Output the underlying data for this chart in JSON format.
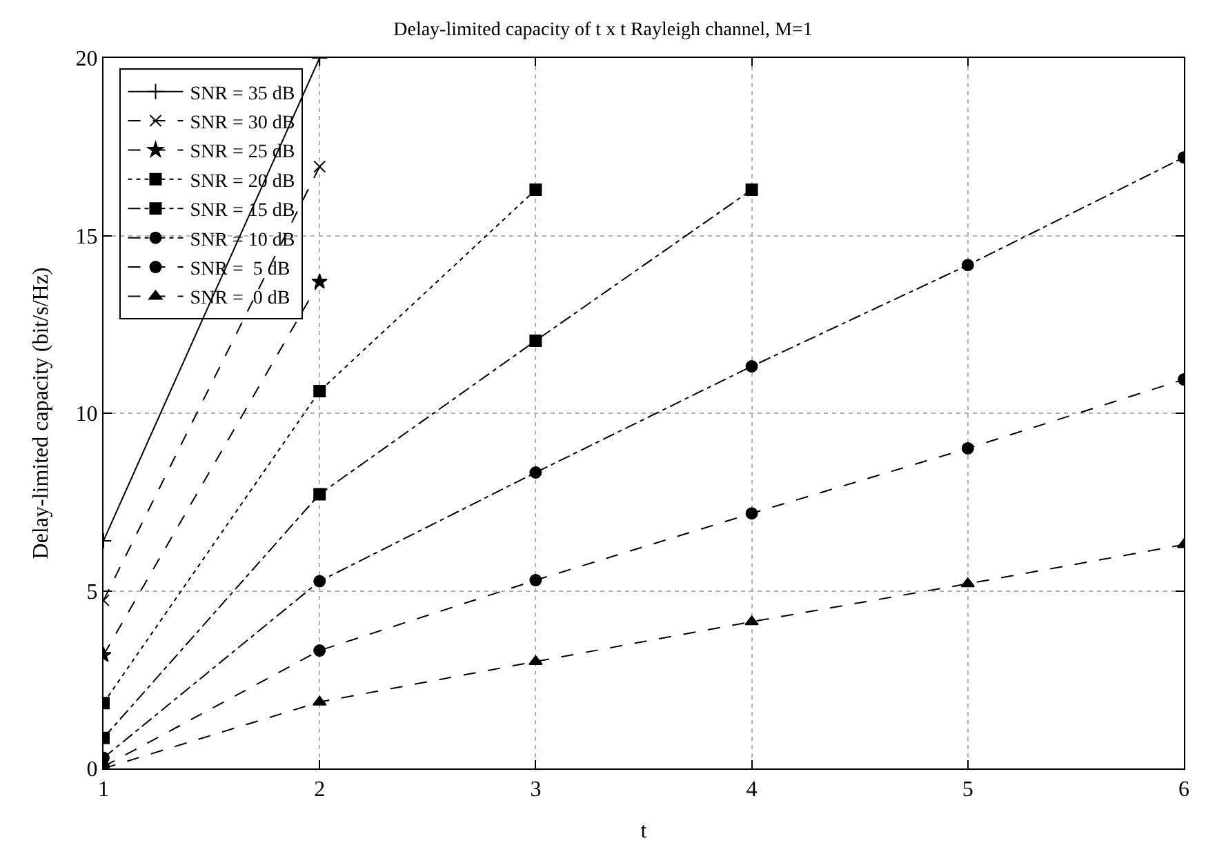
{
  "chart_data": {
    "type": "line",
    "title": "Delay-limited capacity of t x t Rayleigh channel, M=1",
    "xlabel": "t",
    "ylabel": "Delay-limited capacity (bit/s/Hz)",
    "x": [
      1,
      2,
      3,
      4,
      5,
      6
    ],
    "series": [
      {
        "name": "SNR = 35 dB",
        "color": "#000000",
        "marker": "cross",
        "line_style": "solid",
        "values": [
          6.41,
          20.0,
          null,
          null,
          null,
          null
        ]
      },
      {
        "name": "SNR = 30 dB",
        "color": "#000000",
        "marker": "x",
        "line_style": "dashed",
        "values": [
          4.73,
          16.94,
          null,
          null,
          null,
          null
        ]
      },
      {
        "name": "SNR = 25 dB",
        "color": "#000000",
        "marker": "star",
        "line_style": "dashed",
        "values": [
          3.19,
          13.7,
          null,
          null,
          null,
          null
        ]
      },
      {
        "name": "SNR = 20 dB",
        "color": "#000000",
        "marker": "square",
        "line_style": "dotted",
        "values": [
          1.84,
          10.62,
          16.29,
          null,
          null,
          null
        ]
      },
      {
        "name": "SNR = 15 dB",
        "color": "#000000",
        "marker": "square",
        "line_style": "dashdot",
        "values": [
          0.86,
          7.72,
          12.04,
          16.29,
          null,
          null
        ]
      },
      {
        "name": "SNR = 10 dB",
        "color": "#000000",
        "marker": "circle",
        "line_style": "dashdot",
        "values": [
          0.3,
          5.27,
          8.33,
          11.32,
          14.17,
          17.2
        ]
      },
      {
        "name": "SNR =  5 dB",
        "color": "#000000",
        "marker": "circle",
        "line_style": "dashed",
        "values": [
          0.05,
          3.32,
          5.3,
          7.18,
          9.01,
          10.95
        ]
      },
      {
        "name": "SNR =  0 dB",
        "color": "#000000",
        "marker": "triangle",
        "line_style": "dashed",
        "values": [
          0.0,
          1.87,
          3.01,
          4.13,
          5.2,
          6.3
        ]
      }
    ],
    "xlim": [
      1,
      6
    ],
    "ylim": [
      0,
      20
    ],
    "xticks": [
      1,
      2,
      3,
      4,
      5,
      6
    ],
    "yticks": [
      0,
      5,
      10,
      15,
      20
    ],
    "grid": true,
    "legend": "top left"
  }
}
